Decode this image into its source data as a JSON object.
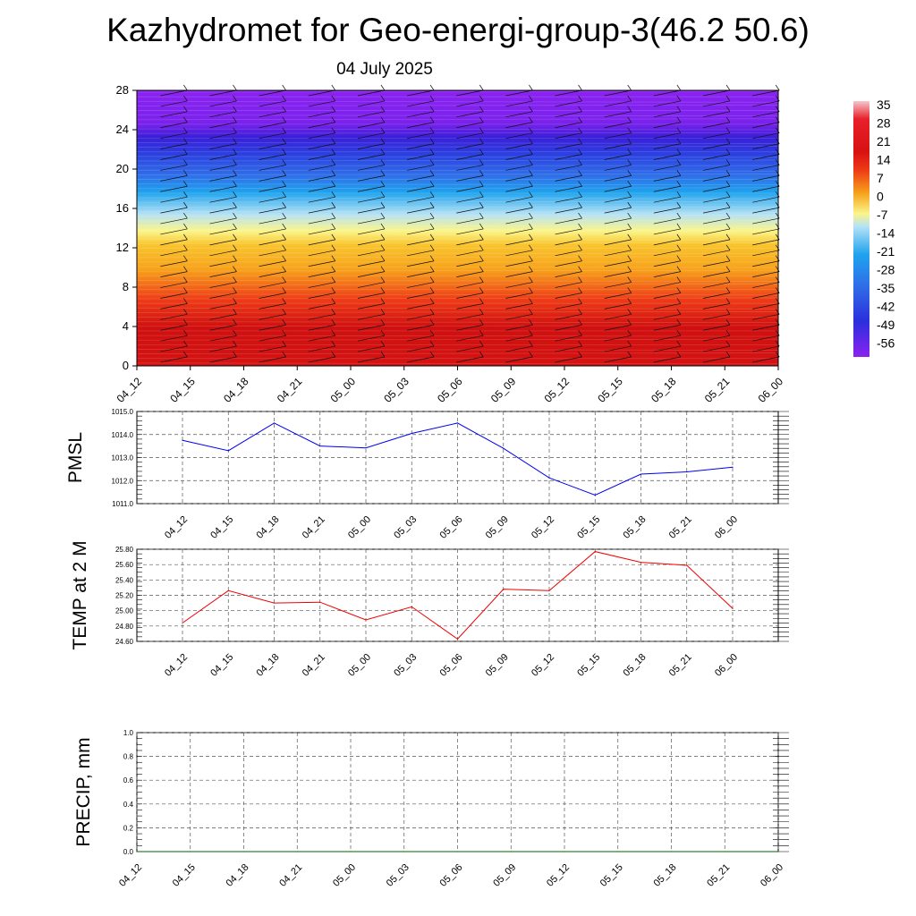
{
  "title": "Kazhydromet for Geo-energi-group-3(46.2 50.6)",
  "subtitle": "04 July 2025",
  "colorbar": {
    "labels": [
      "35",
      "28",
      "21",
      "14",
      "7",
      "0",
      "-7",
      "-14",
      "-21",
      "-28",
      "-35",
      "-42",
      "-49",
      "-56"
    ]
  },
  "chart_data": [
    {
      "type": "heatmap",
      "name": "temperature-wind-profile",
      "x_ticks": [
        "04_12",
        "04_15",
        "04_18",
        "04_21",
        "05_00",
        "05_03",
        "05_06",
        "05_09",
        "05_12",
        "05_15",
        "05_18",
        "05_21",
        "06_00"
      ],
      "y_ticks": [
        0,
        4,
        8,
        12,
        16,
        20,
        24,
        28
      ],
      "ylim": [
        0,
        28
      ],
      "overlay": "wind barbs",
      "color_scale": {
        "min": -56,
        "max": 35,
        "colors": [
          "#8b22f0",
          "#3b1fd8",
          "#2f6fe8",
          "#1fa3ee",
          "#b5e2f5",
          "#fbf58a",
          "#f7a21b",
          "#ee3b16",
          "#d01010",
          "#f5c6cc"
        ]
      }
    },
    {
      "type": "line",
      "name": "pmsl",
      "ylabel": "PMSL",
      "ylim": [
        1011.0,
        1015.0
      ],
      "y_ticks": [
        "1011.0",
        "1012.0",
        "1013.0",
        "1014.0",
        "1015.0"
      ],
      "x": [
        "04_12",
        "04_15",
        "04_18",
        "04_21",
        "05_00",
        "05_03",
        "05_06",
        "05_09",
        "05_12",
        "05_15",
        "05_18",
        "05_21",
        "06_00"
      ],
      "values": [
        1013.75,
        1013.3,
        1014.5,
        1013.5,
        1013.42,
        1014.05,
        1014.5,
        1013.4,
        1012.12,
        1011.37,
        1012.28,
        1012.38,
        1012.58
      ],
      "color": "#0000ee",
      "grid": true
    },
    {
      "type": "line",
      "name": "temp-2m",
      "ylabel": "TEMP at 2 M",
      "ylim": [
        24.6,
        25.8
      ],
      "y_ticks": [
        "24.60",
        "24.80",
        "25.00",
        "25.20",
        "25.40",
        "25.60",
        "25.80"
      ],
      "x": [
        "04_12",
        "04_15",
        "04_18",
        "04_21",
        "05_00",
        "05_03",
        "05_06",
        "05_09",
        "05_12",
        "05_15",
        "05_18",
        "05_21",
        "06_00"
      ],
      "values": [
        24.84,
        25.26,
        25.1,
        25.11,
        24.88,
        25.05,
        24.63,
        25.28,
        25.26,
        25.77,
        25.63,
        25.59,
        25.03
      ],
      "color": "#ee0000",
      "grid": true
    },
    {
      "type": "line",
      "name": "precip",
      "ylabel": "PRECIP, mm",
      "ylim": [
        0.0,
        1.0
      ],
      "y_ticks": [
        "0.0",
        "0.2",
        "0.4",
        "0.6",
        "0.8",
        "1.0"
      ],
      "x": [
        "04_12",
        "04_15",
        "04_18",
        "04_21",
        "05_00",
        "05_03",
        "05_06",
        "05_09",
        "05_12",
        "05_15",
        "05_18",
        "05_21",
        "06_00"
      ],
      "values": [
        0,
        0,
        0,
        0,
        0,
        0,
        0,
        0,
        0,
        0,
        0,
        0,
        0
      ],
      "color": "#006400",
      "grid": true
    }
  ]
}
